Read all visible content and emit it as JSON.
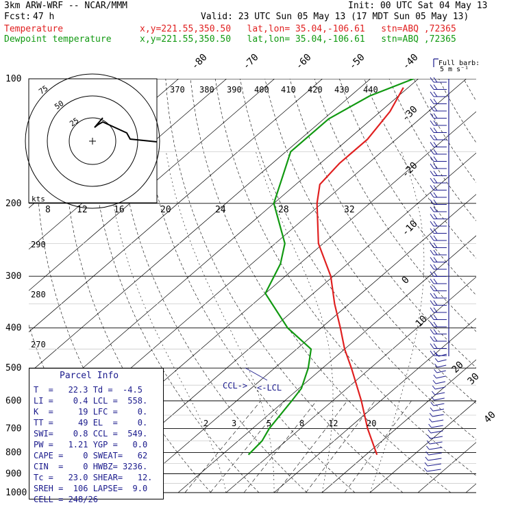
{
  "header": {
    "model": "3km ARW-WRF -- NCAR/MMM",
    "init": "Init: 00 UTC Sat 04 May 13",
    "fcst_label": "Fcst:",
    "fcst_value": "47 h",
    "valid": "Valid: 23 UTC Sun 05 May 13 (17 MDT Sun 05 May 13)",
    "temp_label": "Temperature",
    "dew_label": "Dewpoint temperature",
    "location": "x,y=221.55,350.50   lat,lon= 35.04,-106.61   stn=ABQ ,72365"
  },
  "colors": {
    "temperature": "#e02020",
    "dewpoint": "#119911",
    "parcel": "#1a1a8c",
    "barb": "#1a1a8c"
  },
  "hodograph": {
    "speed_label": "kts",
    "rings": [
      "25",
      "50",
      "75"
    ],
    "x_ticks": [
      "8",
      "12",
      "16",
      "20",
      "24",
      "28",
      "32"
    ]
  },
  "barb_legend": {
    "line1": "Full barb:",
    "line2": "5 m s⁻¹"
  },
  "chart_data": {
    "type": "line",
    "pressure_axis": {
      "scale": "log",
      "ylim": [
        1000,
        100
      ],
      "ticks": [
        "100",
        "200",
        "300",
        "400",
        "500",
        "600",
        "700",
        "800",
        "900",
        "1000"
      ]
    },
    "isotherm_labels": [
      "-80",
      "-70",
      "-60",
      "-50",
      "-40",
      "-30",
      "-20",
      "-10",
      "0",
      "10",
      "20",
      "30",
      "40"
    ],
    "theta_labels": [
      "370",
      "380",
      "390",
      "400",
      "410",
      "420",
      "430",
      "440",
      "290",
      "280",
      "270"
    ],
    "mixing_ratio_labels": [
      "2",
      "3",
      "5",
      "8",
      "12",
      "20"
    ],
    "ccl_label": "CCL->",
    "lcl_label": "<-LCL",
    "series": [
      {
        "name": "Temperature",
        "points": [
          {
            "p": 810,
            "t": 22.3
          },
          {
            "p": 700,
            "t": 14
          },
          {
            "p": 600,
            "t": 6
          },
          {
            "p": 500,
            "t": -4
          },
          {
            "p": 450,
            "t": -10
          },
          {
            "p": 400,
            "t": -16
          },
          {
            "p": 350,
            "t": -23
          },
          {
            "p": 300,
            "t": -30.5
          },
          {
            "p": 250,
            "t": -41
          },
          {
            "p": 200,
            "t": -51
          },
          {
            "p": 180,
            "t": -55
          },
          {
            "p": 160,
            "t": -56
          },
          {
            "p": 140,
            "t": -56
          },
          {
            "p": 120,
            "t": -58
          },
          {
            "p": 105,
            "t": -61
          }
        ]
      },
      {
        "name": "Dewpoint temperature",
        "points": [
          {
            "p": 810,
            "t": -4.5
          },
          {
            "p": 750,
            "t": -5
          },
          {
            "p": 700,
            "t": -6.5
          },
          {
            "p": 600,
            "t": -8.5
          },
          {
            "p": 560,
            "t": -9.5
          },
          {
            "p": 500,
            "t": -13
          },
          {
            "p": 450,
            "t": -17
          },
          {
            "p": 400,
            "t": -27
          },
          {
            "p": 330,
            "t": -40
          },
          {
            "p": 280,
            "t": -44
          },
          {
            "p": 250,
            "t": -48
          },
          {
            "p": 200,
            "t": -60
          },
          {
            "p": 150,
            "t": -69
          },
          {
            "p": 125,
            "t": -69
          },
          {
            "p": 110,
            "t": -66
          },
          {
            "p": 100,
            "t": -61
          }
        ]
      }
    ]
  },
  "parcel": {
    "title": "Parcel Info",
    "rows": [
      "T  =   22.3 Td =  -4.5",
      "LI =    0.4 LCL =  558.",
      "K  =     19 LFC =    0.",
      "TT =     49 EL  =    0.",
      "SWI=    0.8 CCL =  549.",
      "PW =   1.21 YGP =   0.0",
      "CAPE =    0 SWEAT=   62",
      "CIN  =    0 HWBZ= 3236.",
      "Tc =   23.0 SHEAR=   12.",
      "SREH =  106 LAPSE=  9.0",
      "CELL = 248/26"
    ]
  }
}
